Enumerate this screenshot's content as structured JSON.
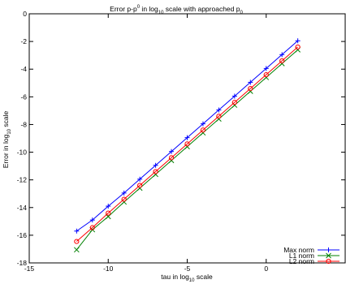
{
  "chart_data": {
    "type": "line",
    "title": "Error p-p",
    "title_sup": "0",
    "title_mid": " in log",
    "title_sub": "10",
    "title_end": " scale with approached p",
    "title_sub2": "0",
    "xlabel": "tau in log",
    "xlabel_sub": "10",
    "xlabel_end": " scale",
    "ylabel": "Error in log",
    "ylabel_sub": "10",
    "ylabel_end": " scale",
    "xlim": [
      -15,
      5
    ],
    "ylim": [
      -18,
      0
    ],
    "xticks": [
      -15,
      -10,
      -5,
      0
    ],
    "yticks": [
      0,
      -2,
      -4,
      -6,
      -8,
      -10,
      -12,
      -14,
      -16,
      -18
    ],
    "grid": false,
    "legend_position": "bottom-right",
    "x": [
      -12,
      -11,
      -10,
      -9,
      -8,
      -7,
      -6,
      -5,
      -4,
      -3,
      -2,
      -1,
      0,
      1,
      2
    ],
    "series": [
      {
        "name": "Max norm",
        "color": "#0000ff",
        "marker": "plus",
        "values": [
          -15.7,
          -14.9,
          -13.9,
          -12.95,
          -11.95,
          -10.95,
          -9.95,
          -8.95,
          -7.95,
          -6.95,
          -5.95,
          -4.95,
          -3.95,
          -2.95,
          -1.95
        ]
      },
      {
        "name": "L1 norm",
        "color": "#008000",
        "marker": "cross",
        "values": [
          -17.05,
          -15.6,
          -14.65,
          -13.6,
          -12.6,
          -11.6,
          -10.6,
          -9.6,
          -8.6,
          -7.6,
          -6.6,
          -5.6,
          -4.6,
          -3.6,
          -2.6
        ]
      },
      {
        "name": "L2 norm",
        "color": "#ff0000",
        "marker": "circle",
        "values": [
          -16.45,
          -15.45,
          -14.4,
          -13.4,
          -12.4,
          -11.4,
          -10.4,
          -9.4,
          -8.4,
          -7.4,
          -6.4,
          -5.4,
          -4.4,
          -3.4,
          -2.4
        ]
      }
    ]
  }
}
